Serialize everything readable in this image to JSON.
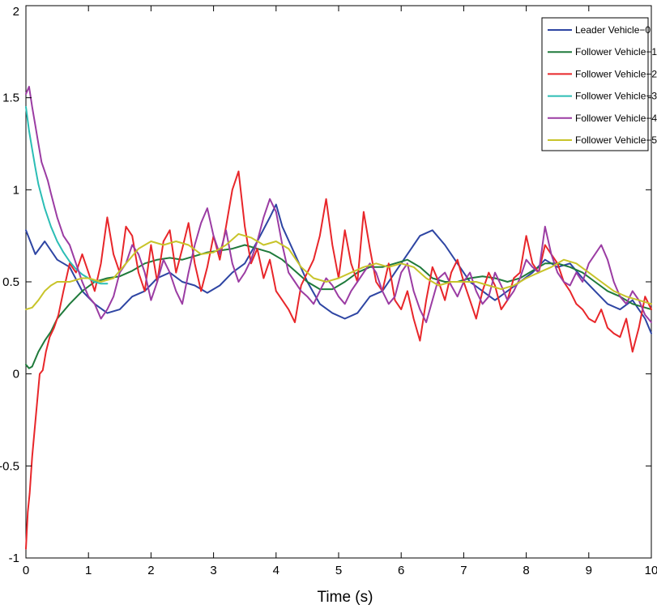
{
  "chart_data": {
    "type": "line",
    "title": "",
    "xlabel": "Time (s)",
    "ylabel": "",
    "xlim": [
      0,
      10
    ],
    "ylim": [
      -1,
      2
    ],
    "xticks": [
      0,
      1,
      2,
      3,
      4,
      5,
      6,
      7,
      8,
      9,
      10
    ],
    "yticks": [
      -1,
      -0.5,
      0,
      0.5,
      1,
      1.5,
      2
    ],
    "xtick_labels": [
      "0",
      "1",
      "2",
      "3",
      "4",
      "5",
      "6",
      "7",
      "8",
      "9",
      "10"
    ],
    "ytick_labels": [
      "-1",
      "-0.5",
      "0",
      "0.5",
      "1",
      "1.5",
      "2"
    ],
    "grid": false,
    "legend_position": "top-right",
    "series": [
      {
        "name": "Leader Vehicle−0",
        "color": "#2e45a3",
        "x": [
          0,
          0.15,
          0.3,
          0.5,
          0.7,
          0.9,
          1.1,
          1.3,
          1.5,
          1.7,
          1.9,
          2.1,
          2.3,
          2.5,
          2.7,
          2.9,
          3.1,
          3.3,
          3.5,
          3.7,
          3.9,
          4.0,
          4.1,
          4.3,
          4.5,
          4.7,
          4.9,
          5.1,
          5.3,
          5.5,
          5.7,
          5.9,
          6.1,
          6.3,
          6.5,
          6.7,
          6.9,
          7.1,
          7.3,
          7.5,
          7.7,
          7.9,
          8.1,
          8.3,
          8.5,
          8.7,
          8.9,
          9.1,
          9.3,
          9.5,
          9.7,
          9.9,
          10
        ],
        "y": [
          0.78,
          0.65,
          0.72,
          0.62,
          0.58,
          0.45,
          0.38,
          0.33,
          0.35,
          0.42,
          0.45,
          0.52,
          0.55,
          0.5,
          0.48,
          0.44,
          0.48,
          0.55,
          0.6,
          0.72,
          0.85,
          0.92,
          0.8,
          0.65,
          0.5,
          0.38,
          0.33,
          0.3,
          0.33,
          0.42,
          0.45,
          0.55,
          0.65,
          0.75,
          0.78,
          0.7,
          0.6,
          0.5,
          0.45,
          0.4,
          0.45,
          0.5,
          0.55,
          0.62,
          0.58,
          0.6,
          0.52,
          0.45,
          0.38,
          0.35,
          0.4,
          0.3,
          0.22
        ]
      },
      {
        "name": "Follower Vehicle−1",
        "color": "#1f7a3b",
        "x": [
          0,
          0.05,
          0.1,
          0.2,
          0.3,
          0.4,
          0.5,
          0.7,
          0.9,
          1.1,
          1.3,
          1.5,
          1.7,
          1.9,
          2.1,
          2.3,
          2.5,
          2.7,
          2.9,
          3.1,
          3.3,
          3.5,
          3.7,
          3.9,
          4.1,
          4.3,
          4.5,
          4.7,
          4.9,
          5.1,
          5.3,
          5.5,
          5.7,
          5.9,
          6.1,
          6.3,
          6.5,
          6.7,
          6.9,
          7.1,
          7.3,
          7.5,
          7.7,
          7.9,
          8.1,
          8.3,
          8.5,
          8.7,
          8.9,
          9.1,
          9.3,
          9.5,
          9.7,
          9.9,
          10
        ],
        "y": [
          0.05,
          0.03,
          0.04,
          0.12,
          0.18,
          0.23,
          0.3,
          0.38,
          0.45,
          0.5,
          0.52,
          0.53,
          0.56,
          0.6,
          0.62,
          0.63,
          0.62,
          0.64,
          0.66,
          0.67,
          0.68,
          0.7,
          0.68,
          0.66,
          0.62,
          0.56,
          0.5,
          0.46,
          0.46,
          0.5,
          0.55,
          0.58,
          0.58,
          0.6,
          0.62,
          0.58,
          0.52,
          0.5,
          0.5,
          0.52,
          0.53,
          0.52,
          0.5,
          0.52,
          0.56,
          0.6,
          0.6,
          0.58,
          0.55,
          0.5,
          0.45,
          0.42,
          0.38,
          0.36,
          0.35
        ]
      },
      {
        "name": "Follower Vehicle−2",
        "color": "#e8262a",
        "x": [
          0,
          0.03,
          0.06,
          0.1,
          0.14,
          0.18,
          0.22,
          0.27,
          0.32,
          0.38,
          0.45,
          0.52,
          0.6,
          0.7,
          0.8,
          0.9,
          1.0,
          1.1,
          1.2,
          1.3,
          1.4,
          1.5,
          1.6,
          1.7,
          1.8,
          1.9,
          2.0,
          2.1,
          2.2,
          2.3,
          2.4,
          2.5,
          2.6,
          2.7,
          2.8,
          2.9,
          3.0,
          3.1,
          3.2,
          3.3,
          3.4,
          3.5,
          3.6,
          3.7,
          3.8,
          3.9,
          4.0,
          4.1,
          4.2,
          4.3,
          4.4,
          4.5,
          4.6,
          4.7,
          4.8,
          4.9,
          5.0,
          5.1,
          5.2,
          5.3,
          5.4,
          5.5,
          5.6,
          5.7,
          5.8,
          5.9,
          6.0,
          6.1,
          6.2,
          6.3,
          6.4,
          6.5,
          6.6,
          6.7,
          6.8,
          6.9,
          7.0,
          7.1,
          7.2,
          7.3,
          7.4,
          7.5,
          7.6,
          7.7,
          7.8,
          7.9,
          8.0,
          8.1,
          8.2,
          8.3,
          8.4,
          8.5,
          8.6,
          8.7,
          8.8,
          8.9,
          9.0,
          9.1,
          9.2,
          9.3,
          9.4,
          9.5,
          9.6,
          9.7,
          9.8,
          9.9,
          10
        ],
        "y": [
          -0.95,
          -0.75,
          -0.65,
          -0.45,
          -0.3,
          -0.15,
          0.0,
          0.02,
          0.12,
          0.2,
          0.25,
          0.32,
          0.45,
          0.6,
          0.55,
          0.65,
          0.55,
          0.45,
          0.6,
          0.85,
          0.65,
          0.55,
          0.8,
          0.75,
          0.55,
          0.45,
          0.7,
          0.5,
          0.72,
          0.78,
          0.55,
          0.68,
          0.82,
          0.6,
          0.45,
          0.58,
          0.75,
          0.62,
          0.8,
          1.0,
          1.1,
          0.8,
          0.6,
          0.68,
          0.52,
          0.62,
          0.45,
          0.4,
          0.35,
          0.28,
          0.48,
          0.55,
          0.62,
          0.75,
          0.95,
          0.7,
          0.52,
          0.78,
          0.6,
          0.5,
          0.88,
          0.68,
          0.5,
          0.45,
          0.6,
          0.4,
          0.35,
          0.45,
          0.3,
          0.18,
          0.4,
          0.58,
          0.5,
          0.4,
          0.55,
          0.62,
          0.5,
          0.4,
          0.3,
          0.45,
          0.55,
          0.48,
          0.35,
          0.4,
          0.52,
          0.55,
          0.75,
          0.6,
          0.55,
          0.7,
          0.65,
          0.6,
          0.5,
          0.45,
          0.38,
          0.35,
          0.3,
          0.28,
          0.35,
          0.25,
          0.22,
          0.2,
          0.3,
          0.12,
          0.25,
          0.42,
          0.35
        ]
      },
      {
        "name": "Follower Vehicle−3",
        "color": "#2bbdb5",
        "x": [
          0,
          0.05,
          0.1,
          0.15,
          0.2,
          0.3,
          0.4,
          0.5,
          0.6,
          0.7,
          0.8,
          0.9,
          1.0,
          1.1,
          1.2,
          1.3
        ],
        "y": [
          1.45,
          1.32,
          1.22,
          1.12,
          1.03,
          0.9,
          0.8,
          0.72,
          0.66,
          0.61,
          0.57,
          0.54,
          0.52,
          0.5,
          0.49,
          0.49
        ]
      },
      {
        "name": "Follower Vehicle−4",
        "color": "#9b3ca3",
        "x": [
          0,
          0.05,
          0.1,
          0.15,
          0.2,
          0.25,
          0.3,
          0.35,
          0.4,
          0.5,
          0.6,
          0.7,
          0.8,
          0.9,
          1.0,
          1.1,
          1.2,
          1.3,
          1.4,
          1.5,
          1.6,
          1.7,
          1.8,
          1.9,
          2.0,
          2.1,
          2.2,
          2.3,
          2.4,
          2.5,
          2.6,
          2.7,
          2.8,
          2.9,
          3.0,
          3.1,
          3.2,
          3.3,
          3.4,
          3.5,
          3.6,
          3.7,
          3.8,
          3.9,
          4.0,
          4.1,
          4.2,
          4.3,
          4.4,
          4.5,
          4.6,
          4.7,
          4.8,
          4.9,
          5.0,
          5.1,
          5.2,
          5.3,
          5.4,
          5.5,
          5.6,
          5.7,
          5.8,
          5.9,
          6.0,
          6.1,
          6.2,
          6.3,
          6.4,
          6.5,
          6.6,
          6.7,
          6.8,
          6.9,
          7.0,
          7.1,
          7.2,
          7.3,
          7.4,
          7.5,
          7.6,
          7.7,
          7.8,
          7.9,
          8.0,
          8.1,
          8.2,
          8.3,
          8.4,
          8.5,
          8.6,
          8.7,
          8.8,
          8.9,
          9.0,
          9.1,
          9.2,
          9.3,
          9.4,
          9.5,
          9.6,
          9.7,
          9.8,
          9.9,
          10
        ],
        "y": [
          1.52,
          1.56,
          1.45,
          1.35,
          1.25,
          1.15,
          1.1,
          1.05,
          0.98,
          0.85,
          0.75,
          0.7,
          0.6,
          0.5,
          0.42,
          0.38,
          0.3,
          0.35,
          0.42,
          0.55,
          0.6,
          0.7,
          0.65,
          0.55,
          0.4,
          0.5,
          0.62,
          0.55,
          0.45,
          0.38,
          0.55,
          0.7,
          0.82,
          0.9,
          0.75,
          0.65,
          0.78,
          0.6,
          0.5,
          0.55,
          0.62,
          0.72,
          0.85,
          0.95,
          0.88,
          0.7,
          0.55,
          0.5,
          0.45,
          0.42,
          0.38,
          0.45,
          0.52,
          0.48,
          0.42,
          0.38,
          0.45,
          0.5,
          0.55,
          0.6,
          0.55,
          0.45,
          0.38,
          0.42,
          0.55,
          0.6,
          0.45,
          0.35,
          0.28,
          0.4,
          0.52,
          0.55,
          0.48,
          0.42,
          0.5,
          0.55,
          0.45,
          0.38,
          0.42,
          0.55,
          0.48,
          0.4,
          0.45,
          0.52,
          0.62,
          0.58,
          0.55,
          0.8,
          0.65,
          0.55,
          0.5,
          0.48,
          0.55,
          0.5,
          0.6,
          0.65,
          0.7,
          0.62,
          0.5,
          0.42,
          0.38,
          0.45,
          0.4,
          0.32,
          0.28
        ]
      },
      {
        "name": "Follower Vehicle−5",
        "color": "#c8c42a",
        "x": [
          0,
          0.1,
          0.2,
          0.3,
          0.4,
          0.5,
          0.6,
          0.7,
          0.8,
          0.9,
          1.0,
          1.2,
          1.4,
          1.6,
          1.8,
          2.0,
          2.2,
          2.4,
          2.6,
          2.8,
          3.0,
          3.2,
          3.4,
          3.6,
          3.8,
          4.0,
          4.2,
          4.4,
          4.6,
          4.8,
          5.0,
          5.2,
          5.4,
          5.6,
          5.8,
          6.0,
          6.2,
          6.4,
          6.6,
          6.8,
          7.0,
          7.2,
          7.4,
          7.6,
          7.8,
          8.0,
          8.2,
          8.4,
          8.6,
          8.8,
          9.0,
          9.2,
          9.4,
          9.6,
          9.8,
          10
        ],
        "y": [
          0.35,
          0.36,
          0.4,
          0.45,
          0.48,
          0.5,
          0.5,
          0.5,
          0.51,
          0.52,
          0.52,
          0.5,
          0.52,
          0.6,
          0.68,
          0.72,
          0.7,
          0.72,
          0.7,
          0.65,
          0.66,
          0.7,
          0.76,
          0.74,
          0.7,
          0.72,
          0.68,
          0.58,
          0.52,
          0.5,
          0.52,
          0.55,
          0.58,
          0.6,
          0.58,
          0.6,
          0.58,
          0.52,
          0.48,
          0.5,
          0.5,
          0.5,
          0.48,
          0.46,
          0.48,
          0.52,
          0.55,
          0.58,
          0.62,
          0.6,
          0.55,
          0.5,
          0.45,
          0.42,
          0.4,
          0.38
        ]
      }
    ]
  }
}
